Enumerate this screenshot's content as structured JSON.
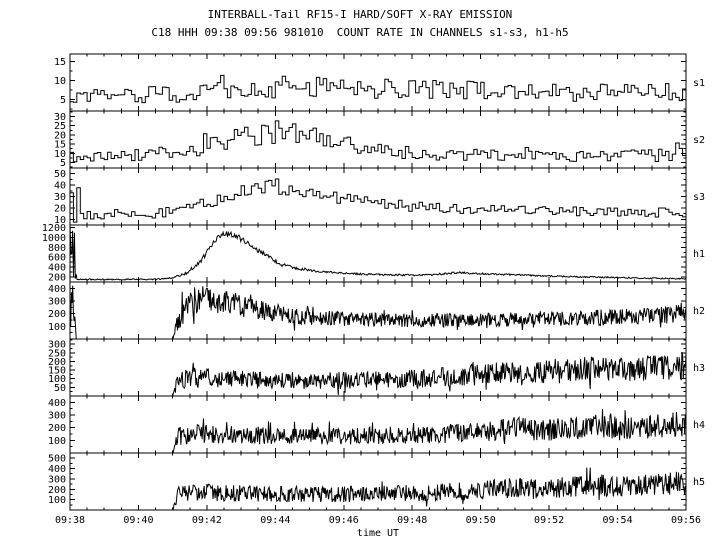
{
  "title": "INTERBALL-Tail RF15-I HARD/SOFT X-RAY EMISSION",
  "subtitle": "C18 HHH 09:38 09:56 981010  COUNT RATE IN CHANNELS s1-s3, h1-h5",
  "xlabel": "time UT",
  "colors": {
    "fg": "#000000",
    "bg": "#ffffff"
  },
  "chart_data": {
    "type": "line",
    "x_minutes_range": [
      0,
      18
    ],
    "x_tick_interval_min": 2,
    "x_tick_labels": [
      "09:38",
      "09:40",
      "09:42",
      "09:44",
      "09:46",
      "09:48",
      "09:50",
      "09:52",
      "09:54",
      "09:56"
    ],
    "legend": "none",
    "grid": false,
    "panels": [
      {
        "label": "s1",
        "style": "step",
        "samples": 180,
        "seed": 1001,
        "ymin": 2,
        "ymax": 17,
        "yticks": [
          5,
          10,
          15
        ],
        "spike_p": 0.06,
        "spike_k": 1.9,
        "envelope": [
          [
            0,
            6,
            2.2
          ],
          [
            3,
            6.5,
            2.2
          ],
          [
            5,
            7.5,
            2.5
          ],
          [
            6.5,
            8.5,
            3
          ],
          [
            8,
            8.5,
            3
          ],
          [
            9.5,
            8,
            2.8
          ],
          [
            11,
            7.5,
            2.5
          ],
          [
            13,
            7,
            2.5
          ],
          [
            15,
            7,
            2.5
          ],
          [
            18,
            7,
            2.5
          ]
        ]
      },
      {
        "label": "s2",
        "style": "step",
        "samples": 180,
        "seed": 1078,
        "ymin": 2,
        "ymax": 33,
        "yticks": [
          5,
          10,
          15,
          20,
          25,
          30
        ],
        "spike_p": 0.06,
        "spike_k": 1.9,
        "envelope": [
          [
            0,
            8,
            3
          ],
          [
            2,
            9,
            3.5
          ],
          [
            3.5,
            12,
            4
          ],
          [
            5,
            18,
            6
          ],
          [
            6,
            21,
            6
          ],
          [
            7,
            19,
            6
          ],
          [
            8,
            15,
            5
          ],
          [
            9,
            12,
            4
          ],
          [
            10,
            10,
            3.5
          ],
          [
            12,
            9,
            3
          ],
          [
            14,
            8,
            3
          ],
          [
            16,
            8.5,
            3
          ],
          [
            17.5,
            9,
            4
          ],
          [
            18,
            14,
            8
          ]
        ]
      },
      {
        "label": "s3",
        "style": "step",
        "samples": 180,
        "seed": 1155,
        "ymin": 5,
        "ymax": 55,
        "yticks": [
          10,
          20,
          30,
          40,
          50
        ],
        "spike_p": 0.05,
        "spike_k": 1.7,
        "envelope": [
          [
            0,
            32,
            26
          ],
          [
            0.18,
            32,
            26
          ],
          [
            0.3,
            13,
            3.5
          ],
          [
            1.5,
            13,
            3.5
          ],
          [
            2.5,
            15,
            4
          ],
          [
            3.5,
            20,
            5
          ],
          [
            4.5,
            28,
            6
          ],
          [
            5.3,
            36,
            7
          ],
          [
            5.8,
            40,
            7
          ],
          [
            6.3,
            38,
            7
          ],
          [
            7,
            33,
            6
          ],
          [
            8,
            28,
            5
          ],
          [
            9,
            24,
            5
          ],
          [
            10,
            21,
            4.5
          ],
          [
            11.5,
            19,
            4
          ],
          [
            13,
            18,
            4
          ],
          [
            15,
            17,
            4
          ],
          [
            17,
            16,
            4
          ],
          [
            18,
            16,
            4
          ]
        ]
      },
      {
        "label": "h1",
        "style": "line",
        "samples": 700,
        "seed": 1232,
        "ymin": 100,
        "ymax": 1250,
        "yticks": [
          200,
          400,
          600,
          800,
          1000,
          1200
        ],
        "spike_p": 0.02,
        "spike_k": 1.5,
        "envelope": [
          [
            0,
            650,
            600
          ],
          [
            0.12,
            650,
            600
          ],
          [
            0.2,
            150,
            12
          ],
          [
            2.5,
            155,
            12
          ],
          [
            3.0,
            180,
            15
          ],
          [
            3.4,
            280,
            25
          ],
          [
            3.8,
            500,
            40
          ],
          [
            4.2,
            900,
            70
          ],
          [
            4.5,
            1080,
            70
          ],
          [
            4.8,
            1050,
            60
          ],
          [
            5.2,
            880,
            50
          ],
          [
            5.6,
            700,
            45
          ],
          [
            6.0,
            520,
            35
          ],
          [
            6.2,
            420,
            30
          ],
          [
            6.35,
            470,
            45
          ],
          [
            6.5,
            400,
            30
          ],
          [
            7.0,
            330,
            25
          ],
          [
            7.5,
            300,
            20
          ],
          [
            8.5,
            260,
            18
          ],
          [
            9.5,
            240,
            18
          ],
          [
            10.5,
            240,
            18
          ],
          [
            11.0,
            270,
            20
          ],
          [
            11.4,
            290,
            22
          ],
          [
            12.0,
            270,
            20
          ],
          [
            12.8,
            250,
            18
          ],
          [
            14,
            220,
            15
          ],
          [
            15.5,
            195,
            14
          ],
          [
            17,
            175,
            12
          ],
          [
            18,
            165,
            12
          ]
        ]
      },
      {
        "label": "h2",
        "style": "line",
        "samples": 900,
        "seed": 1309,
        "ymin": 0,
        "ymax": 450,
        "yticks": [
          100,
          200,
          300,
          400
        ],
        "spike_p": 0.04,
        "spike_k": 1.8,
        "envelope": [
          [
            0,
            230,
            240
          ],
          [
            0.1,
            230,
            240
          ],
          [
            0.18,
            0,
            0
          ],
          [
            3.0,
            0,
            0
          ],
          [
            3.15,
            120,
            90
          ],
          [
            3.4,
            260,
            110
          ],
          [
            3.7,
            310,
            110
          ],
          [
            4.0,
            320,
            110
          ],
          [
            4.3,
            300,
            100
          ],
          [
            4.8,
            280,
            95
          ],
          [
            5.3,
            240,
            85
          ],
          [
            5.8,
            210,
            75
          ],
          [
            6.5,
            185,
            70
          ],
          [
            7.5,
            165,
            60
          ],
          [
            9,
            150,
            55
          ],
          [
            10.5,
            148,
            55
          ],
          [
            12,
            150,
            55
          ],
          [
            13.5,
            160,
            60
          ],
          [
            15,
            165,
            60
          ],
          [
            16,
            175,
            65
          ],
          [
            17,
            180,
            65
          ],
          [
            17.7,
            200,
            75
          ],
          [
            18,
            230,
            85
          ]
        ]
      },
      {
        "label": "h3",
        "style": "line",
        "samples": 900,
        "seed": 1386,
        "ymin": 0,
        "ymax": 330,
        "yticks": [
          50,
          100,
          150,
          200,
          250,
          300
        ],
        "spike_p": 0.04,
        "spike_k": 1.8,
        "envelope": [
          [
            0,
            0,
            0
          ],
          [
            3.0,
            0,
            0
          ],
          [
            3.15,
            90,
            55
          ],
          [
            3.5,
            105,
            60
          ],
          [
            4.5,
            100,
            55
          ],
          [
            5.5,
            92,
            50
          ],
          [
            7,
            88,
            48
          ],
          [
            8.5,
            92,
            50
          ],
          [
            10,
            100,
            55
          ],
          [
            11,
            110,
            60
          ],
          [
            12,
            125,
            65
          ],
          [
            12.7,
            140,
            70
          ],
          [
            13.3,
            120,
            62
          ],
          [
            14.2,
            145,
            72
          ],
          [
            15.2,
            155,
            75
          ],
          [
            16,
            145,
            72
          ],
          [
            16.8,
            155,
            78
          ],
          [
            17.5,
            165,
            80
          ],
          [
            18,
            175,
            85
          ]
        ]
      },
      {
        "label": "h4",
        "style": "line",
        "samples": 900,
        "seed": 1463,
        "ymin": 0,
        "ymax": 450,
        "yticks": [
          100,
          200,
          300,
          400
        ],
        "spike_p": 0.04,
        "spike_k": 1.8,
        "envelope": [
          [
            0,
            0,
            0
          ],
          [
            3.0,
            0,
            0
          ],
          [
            3.15,
            130,
            70
          ],
          [
            3.6,
            150,
            75
          ],
          [
            4.5,
            145,
            72
          ],
          [
            6,
            135,
            68
          ],
          [
            7.5,
            132,
            66
          ],
          [
            9,
            138,
            68
          ],
          [
            10.5,
            148,
            72
          ],
          [
            12,
            165,
            80
          ],
          [
            13,
            195,
            90
          ],
          [
            13.8,
            175,
            82
          ],
          [
            14.6,
            195,
            90
          ],
          [
            15.4,
            210,
            95
          ],
          [
            16.2,
            200,
            92
          ],
          [
            17,
            210,
            95
          ],
          [
            18,
            235,
            105
          ]
        ]
      },
      {
        "label": "h5",
        "style": "line",
        "samples": 900,
        "seed": 1540,
        "ymin": 0,
        "ymax": 550,
        "yticks": [
          100,
          200,
          300,
          400,
          500
        ],
        "spike_p": 0.04,
        "spike_k": 1.8,
        "envelope": [
          [
            0,
            0,
            0
          ],
          [
            3.0,
            0,
            0
          ],
          [
            3.15,
            150,
            80
          ],
          [
            3.6,
            170,
            85
          ],
          [
            4.5,
            165,
            82
          ],
          [
            6,
            155,
            78
          ],
          [
            7.5,
            150,
            75
          ],
          [
            9,
            158,
            78
          ],
          [
            10.5,
            168,
            82
          ],
          [
            12,
            185,
            90
          ],
          [
            13,
            220,
            100
          ],
          [
            13.8,
            200,
            92
          ],
          [
            14.6,
            225,
            102
          ],
          [
            15.4,
            240,
            108
          ],
          [
            16.2,
            230,
            102
          ],
          [
            17,
            240,
            108
          ],
          [
            18,
            270,
            120
          ]
        ]
      }
    ]
  }
}
